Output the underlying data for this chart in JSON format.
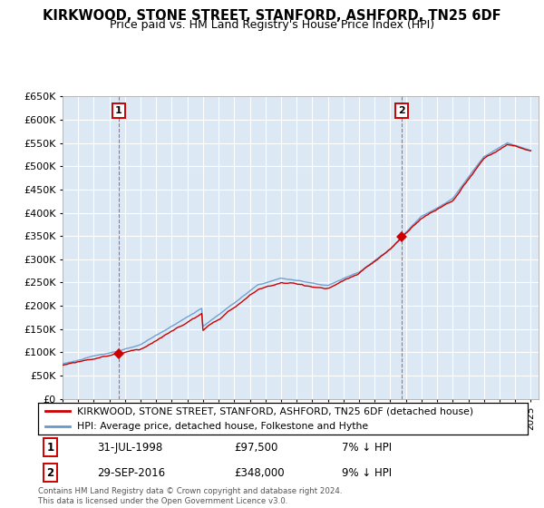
{
  "title": "KIRKWOOD, STONE STREET, STANFORD, ASHFORD, TN25 6DF",
  "subtitle": "Price paid vs. HM Land Registry's House Price Index (HPI)",
  "red_label": "KIRKWOOD, STONE STREET, STANFORD, ASHFORD, TN25 6DF (detached house)",
  "blue_label": "HPI: Average price, detached house, Folkestone and Hythe",
  "sale1_date": "31-JUL-1998",
  "sale1_price": 97500,
  "sale1_price_str": "£97,500",
  "sale1_pct": "7%",
  "sale2_date": "29-SEP-2016",
  "sale2_price": 348000,
  "sale2_price_str": "£348,000",
  "sale2_pct": "9%",
  "footer": "Contains HM Land Registry data © Crown copyright and database right 2024.\nThis data is licensed under the Open Government Licence v3.0.",
  "ylim": [
    0,
    650000
  ],
  "xmin": 1995.0,
  "xmax": 2025.5,
  "sale1_x": 1998.58,
  "sale1_y": 97500,
  "sale2_x": 2016.75,
  "sale2_y": 348000,
  "red_color": "#cc0000",
  "blue_color": "#6699cc",
  "plot_bg_color": "#dce9f5",
  "grid_color": "#ffffff",
  "fig_bg_color": "#ffffff"
}
